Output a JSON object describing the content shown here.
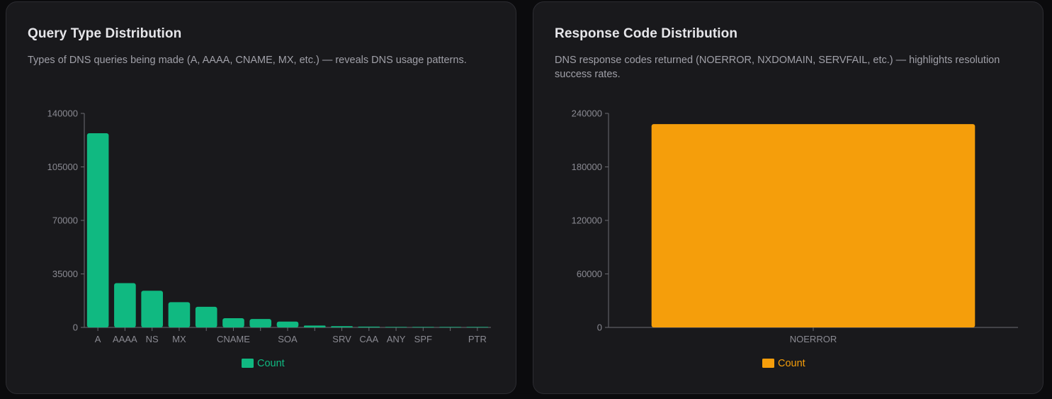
{
  "charts": [
    {
      "title": "Query Type Distribution",
      "description": "Types of DNS queries being made (A, AAAA, CNAME, MX, etc.) — reveals DNS usage patterns.",
      "legend_label": "Count",
      "color": "#10b981"
    },
    {
      "title": "Response Code Distribution",
      "description": "DNS response codes returned (NOERROR, NXDOMAIN, SERVFAIL, etc.) — highlights resolution success rates.",
      "legend_label": "Count",
      "color": "#f59e0b"
    }
  ],
  "chart_data": [
    {
      "type": "bar",
      "title": "Query Type Distribution",
      "categories": [
        "A",
        "AAAA",
        "NS",
        "MX",
        "",
        "CNAME",
        "",
        "SOA",
        "",
        "SRV",
        "CAA",
        "ANY",
        "SPF",
        "",
        "PTR"
      ],
      "series": [
        {
          "name": "Count",
          "color": "#10b981",
          "values": [
            127000,
            29000,
            24000,
            16500,
            13500,
            6000,
            5500,
            3800,
            1200,
            800,
            500,
            300,
            200,
            100,
            60
          ]
        }
      ],
      "ylim": [
        0,
        140000
      ],
      "yticks": [
        0,
        35000,
        70000,
        105000,
        140000
      ],
      "legend": "bottom-center",
      "grid": false
    },
    {
      "type": "bar",
      "title": "Response Code Distribution",
      "categories": [
        "NOERROR"
      ],
      "series": [
        {
          "name": "Count",
          "color": "#f59e0b",
          "values": [
            228000
          ]
        }
      ],
      "ylim": [
        0,
        240000
      ],
      "yticks": [
        0,
        60000,
        120000,
        180000,
        240000
      ],
      "legend": "bottom-center",
      "grid": false
    }
  ]
}
